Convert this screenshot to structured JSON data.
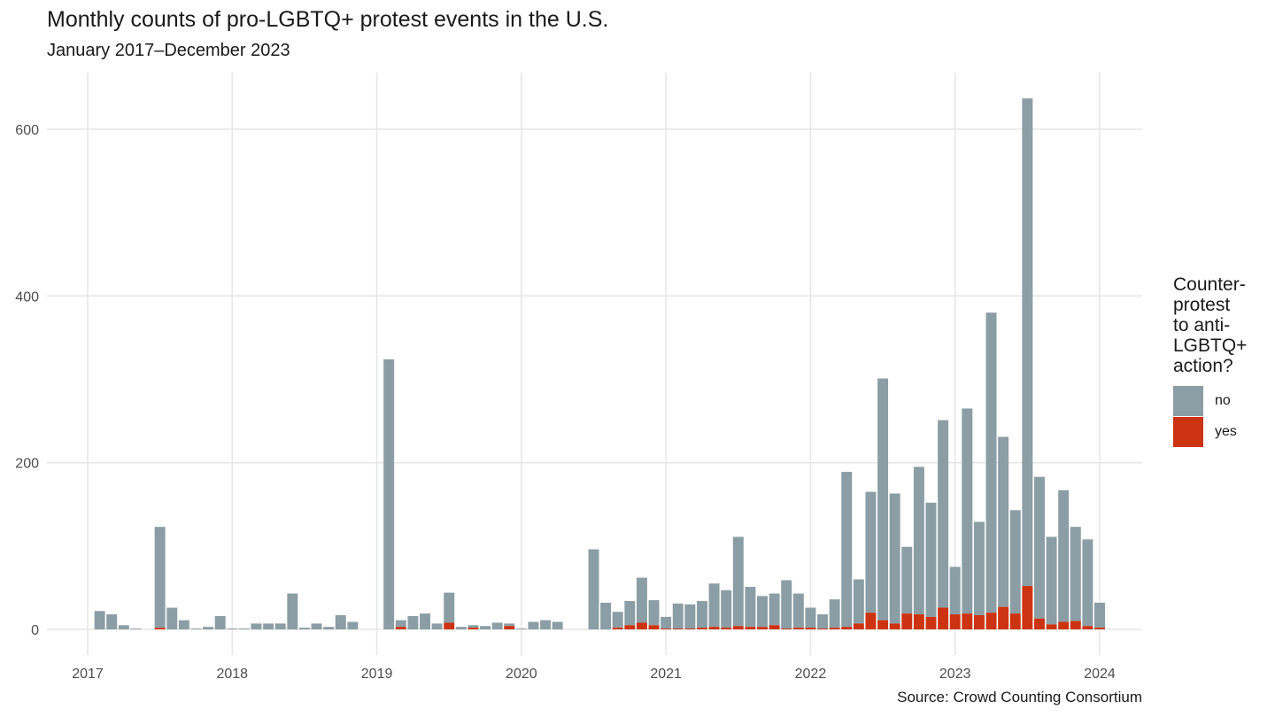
{
  "chart_data": {
    "type": "bar",
    "stacked": true,
    "title": "Monthly counts of pro-LGBTQ+ protest events in the U.S.",
    "subtitle": "January 2017–December 2023",
    "caption": "Source: Crowd Counting Consortium",
    "xlabel": "",
    "ylabel": "",
    "ylim": [
      -30,
      670
    ],
    "yticks": [
      0,
      200,
      400,
      600
    ],
    "xticks": [
      "2017",
      "2018",
      "2019",
      "2020",
      "2021",
      "2022",
      "2023",
      "2024"
    ],
    "grid": true,
    "legend": {
      "title": "Counter-\nprotest\nto anti-\nLGBTQ+\naction?",
      "position": "right"
    },
    "colors": {
      "no": "#8c9ea5",
      "yes": "#cc3311"
    },
    "months": [
      "2017-01",
      "2017-02",
      "2017-03",
      "2017-04",
      "2017-05",
      "2017-06",
      "2017-07",
      "2017-08",
      "2017-09",
      "2017-10",
      "2017-11",
      "2017-12",
      "2018-01",
      "2018-02",
      "2018-03",
      "2018-04",
      "2018-05",
      "2018-06",
      "2018-07",
      "2018-08",
      "2018-09",
      "2018-10",
      "2018-11",
      "2018-12",
      "2019-01",
      "2019-02",
      "2019-03",
      "2019-04",
      "2019-05",
      "2019-06",
      "2019-07",
      "2019-08",
      "2019-09",
      "2019-10",
      "2019-11",
      "2019-12",
      "2020-01",
      "2020-02",
      "2020-03",
      "2020-04",
      "2020-05",
      "2020-06",
      "2020-07",
      "2020-08",
      "2020-09",
      "2020-10",
      "2020-11",
      "2020-12",
      "2021-01",
      "2021-02",
      "2021-03",
      "2021-04",
      "2021-05",
      "2021-06",
      "2021-07",
      "2021-08",
      "2021-09",
      "2021-10",
      "2021-11",
      "2021-12",
      "2022-01",
      "2022-02",
      "2022-03",
      "2022-04",
      "2022-05",
      "2022-06",
      "2022-07",
      "2022-08",
      "2022-09",
      "2022-10",
      "2022-11",
      "2022-12",
      "2023-01",
      "2023-02",
      "2023-03",
      "2023-04",
      "2023-05",
      "2023-06",
      "2023-07",
      "2023-08",
      "2023-09",
      "2023-10",
      "2023-11",
      "2023-12"
    ],
    "series": [
      {
        "name": "no",
        "values": [
          22,
          18,
          5,
          1,
          0,
          121,
          26,
          11,
          1,
          3,
          16,
          1,
          1,
          7,
          7,
          7,
          43,
          2,
          7,
          3,
          17,
          9,
          0,
          0,
          324,
          8,
          16,
          19,
          7,
          36,
          3,
          3,
          4,
          8,
          3,
          1,
          9,
          11,
          9,
          0,
          0,
          96,
          32,
          19,
          29,
          54,
          30,
          14,
          30,
          29,
          32,
          52,
          45,
          107,
          48,
          37,
          38,
          58,
          41,
          24,
          17,
          34,
          186,
          53,
          145,
          290,
          156,
          80,
          177,
          137,
          225,
          57,
          246,
          112,
          360,
          204,
          124,
          585,
          170,
          105,
          158,
          113,
          104,
          30
        ]
      },
      {
        "name": "yes",
        "values": [
          0,
          0,
          0,
          0,
          0,
          2,
          0,
          0,
          0,
          0,
          0,
          0,
          0,
          0,
          0,
          0,
          0,
          0,
          0,
          0,
          0,
          0,
          0,
          0,
          0,
          3,
          0,
          0,
          0,
          8,
          0,
          2,
          0,
          0,
          4,
          0,
          0,
          0,
          0,
          0,
          0,
          0,
          0,
          2,
          5,
          8,
          5,
          1,
          1,
          1,
          2,
          3,
          2,
          4,
          3,
          3,
          5,
          1,
          2,
          2,
          1,
          2,
          3,
          7,
          20,
          11,
          7,
          19,
          18,
          15,
          26,
          18,
          19,
          17,
          20,
          27,
          19,
          52,
          13,
          6,
          9,
          10,
          4,
          2
        ]
      }
    ]
  }
}
